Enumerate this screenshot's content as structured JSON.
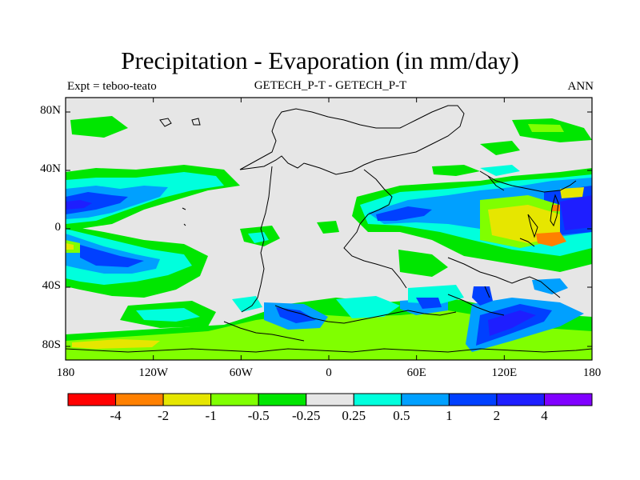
{
  "title": "Precipitation - Evaporation (in mm/day)",
  "left_subtitle": "Expt = teboo-teato",
  "center_subtitle": "GETECH_P-T - GETECH_P-T",
  "right_subtitle": "ANN",
  "y_ticks": [
    "80N",
    "40N",
    "0",
    "40S",
    "80S"
  ],
  "x_ticks": [
    "180",
    "120W",
    "60W",
    "0",
    "60E",
    "120E",
    "180"
  ],
  "colorbar": {
    "colors": [
      "#ff0000",
      "#ff8000",
      "#e6e600",
      "#80ff00",
      "#00e600",
      "#e6e6e6",
      "#00ffdd",
      "#00a0ff",
      "#0040ff",
      "#1e1eff",
      "#8000ff"
    ],
    "labels": [
      "-4",
      "-2",
      "-1",
      "-0.5",
      "-0.25",
      "0.25",
      "0.5",
      "1",
      "2",
      "4"
    ]
  },
  "colors": {
    "background": "#e6e6e6",
    "coast": "#000000"
  }
}
